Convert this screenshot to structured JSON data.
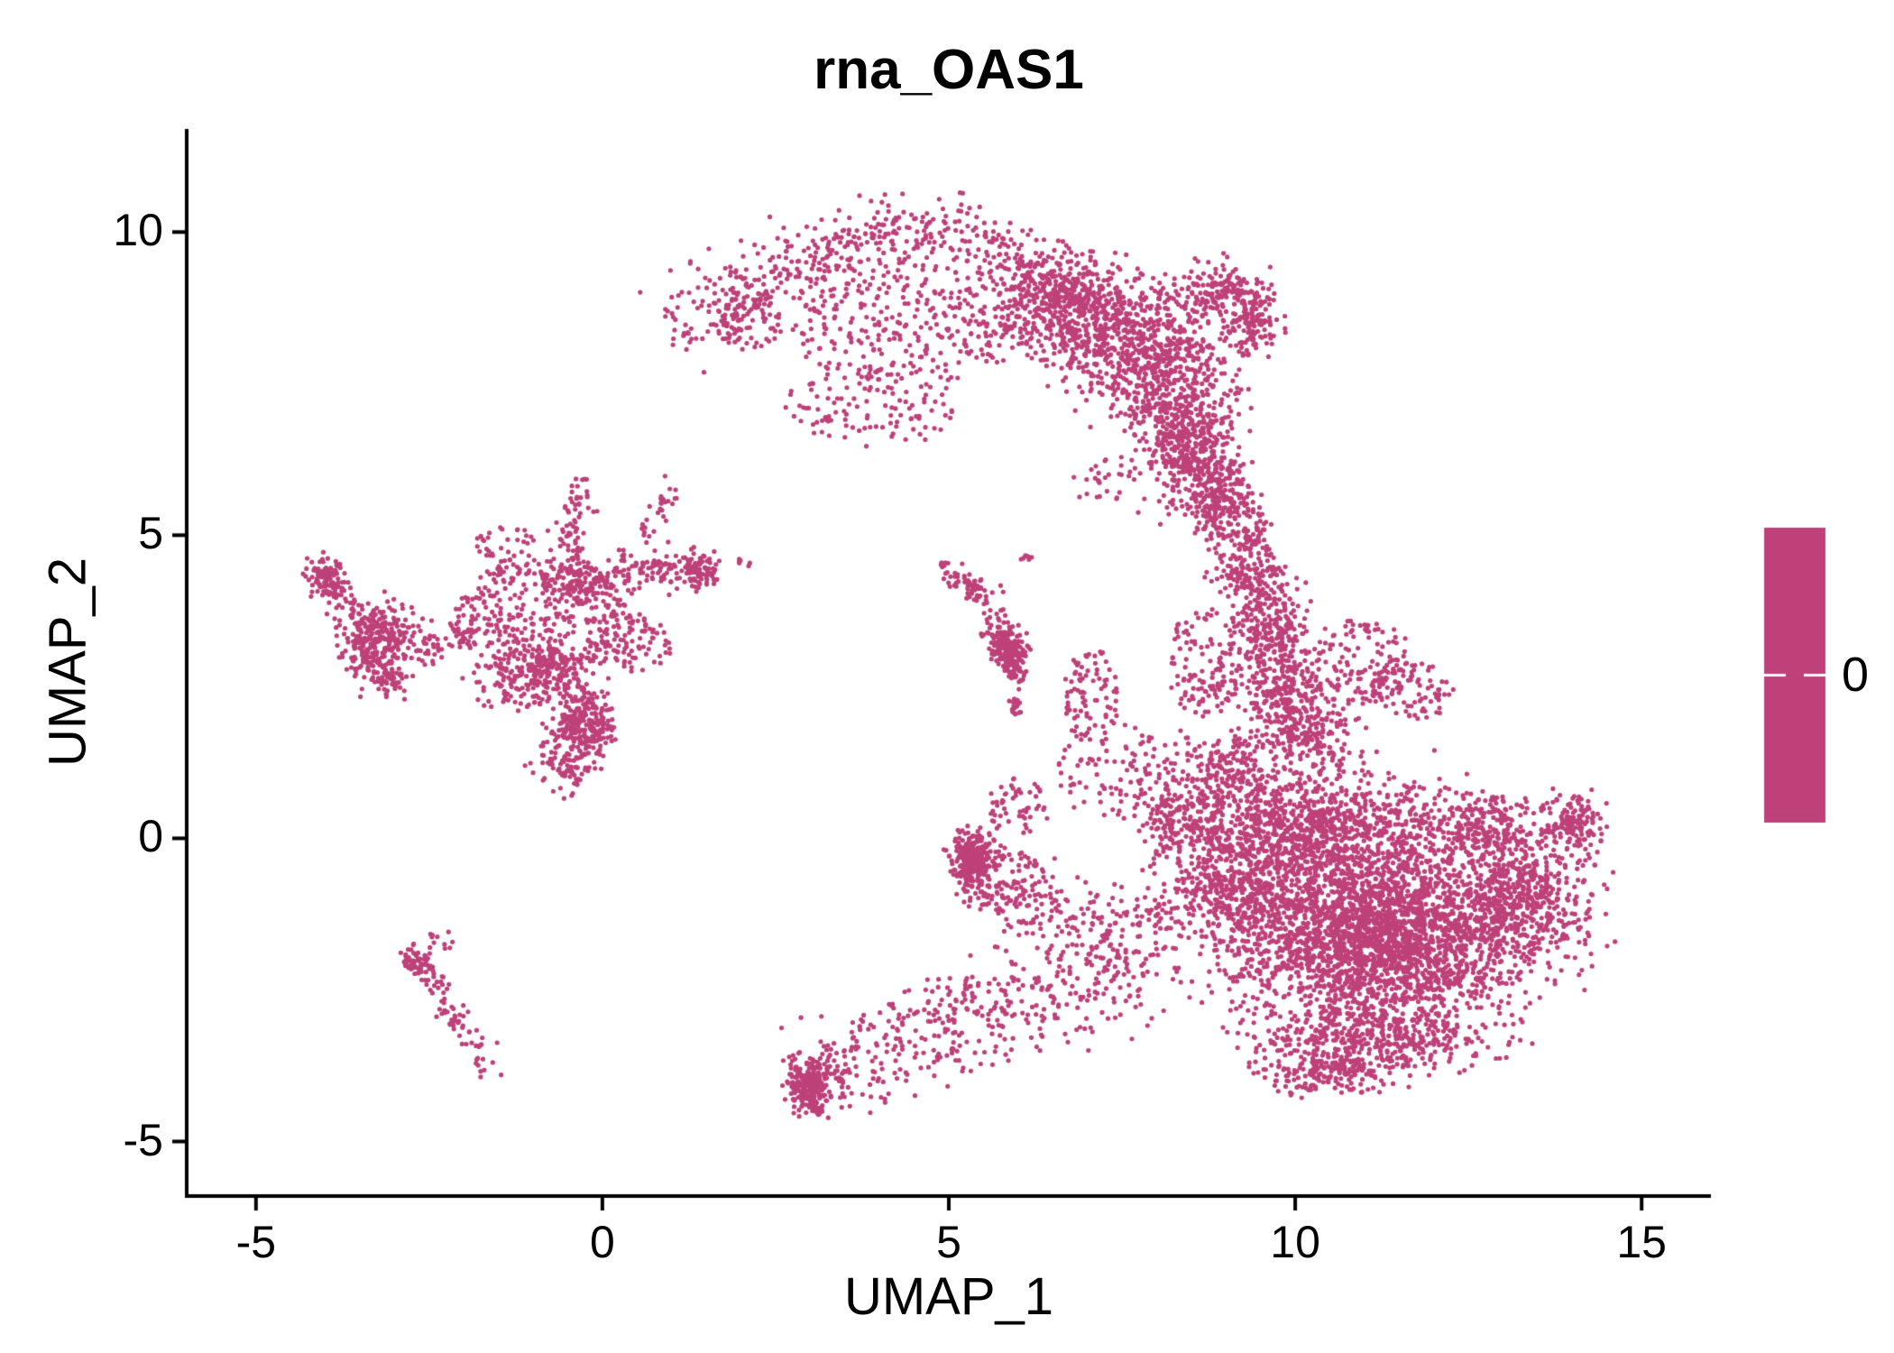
{
  "title": "rna_OAS1",
  "axes": {
    "x": {
      "label": "UMAP_1",
      "ticks": [
        -5,
        0,
        5,
        10,
        15
      ],
      "tick_labels": [
        "-5",
        "0",
        "5",
        "10",
        "15"
      ]
    },
    "y": {
      "label": "UMAP_2",
      "ticks": [
        -5,
        0,
        5,
        10
      ],
      "tick_labels": [
        "-5",
        "0",
        "5",
        "10"
      ]
    }
  },
  "legend": {
    "label": "0",
    "color": "#BE4179"
  },
  "style": {
    "background": "#FFFFFF",
    "axis_color": "#000000",
    "text_color": "#000000"
  },
  "chart_data": {
    "type": "scatter",
    "title": "rna_OAS1",
    "xlabel": "UMAP_1",
    "ylabel": "UMAP_2",
    "xlim": [
      -6.0,
      16.0
    ],
    "ylim": [
      -5.9,
      11.7
    ],
    "grid": false,
    "legend_position": "right",
    "legend": {
      "value": "0"
    },
    "point_color": "#BE4179",
    "point_radius_px": 2.6,
    "seed": 20,
    "description": "UMAP embedding of single cells, all points colored by rna_OAS1 expression value 0 (uniform magenta). Clusters approximated as blobs (gaussian/uniform ellipses) and paths (jittered polylines) in UMAP coordinates.",
    "clusters": [
      {
        "shape": "path",
        "pts": [
          [
            1.3,
            8.7
          ],
          [
            2.2,
            9.15
          ],
          [
            3.2,
            9.6
          ],
          [
            4.3,
            9.95
          ],
          [
            5.2,
            9.85
          ],
          [
            6.0,
            9.55
          ],
          [
            6.8,
            9.25
          ]
        ],
        "w": 0.3,
        "n": 520
      },
      {
        "shape": "blob",
        "x": 6.5,
        "y": 8.8,
        "rx": 1.0,
        "ry": 0.75,
        "n": 420,
        "dist": "gauss"
      },
      {
        "shape": "blob",
        "x": 7.5,
        "y": 8.3,
        "rx": 1.1,
        "ry": 1.0,
        "n": 560,
        "dist": "gauss"
      },
      {
        "shape": "blob",
        "x": 8.2,
        "y": 7.3,
        "rx": 0.9,
        "ry": 1.05,
        "n": 460,
        "dist": "gauss"
      },
      {
        "shape": "blob",
        "x": 8.6,
        "y": 6.3,
        "rx": 0.65,
        "ry": 0.85,
        "n": 300,
        "dist": "gauss"
      },
      {
        "shape": "blob",
        "x": 8.85,
        "y": 5.6,
        "rx": 0.5,
        "ry": 0.55,
        "n": 160,
        "dist": "gauss"
      },
      {
        "shape": "blob",
        "x": 9.35,
        "y": 8.5,
        "rx": 0.4,
        "ry": 0.5,
        "n": 140,
        "dist": "gauss"
      },
      {
        "shape": "blob",
        "x": 8.9,
        "y": 9.0,
        "rx": 0.6,
        "ry": 0.45,
        "n": 150,
        "dist": "gauss"
      },
      {
        "shape": "blob",
        "x": 4.4,
        "y": 8.4,
        "rx": 1.7,
        "ry": 0.9,
        "n": 260,
        "dist": "uniform"
      },
      {
        "shape": "blob",
        "x": 3.9,
        "y": 7.1,
        "rx": 1.3,
        "ry": 0.65,
        "n": 110,
        "dist": "uniform"
      },
      {
        "shape": "blob",
        "x": 2.1,
        "y": 8.5,
        "rx": 0.5,
        "ry": 0.45,
        "n": 70,
        "dist": "uniform"
      },
      {
        "shape": "blob",
        "x": 1.15,
        "y": 8.3,
        "rx": 0.2,
        "ry": 0.3,
        "n": 15,
        "dist": "gauss"
      },
      {
        "shape": "blob",
        "x": 7.2,
        "y": 5.9,
        "rx": 0.5,
        "ry": 0.35,
        "n": 25,
        "dist": "uniform"
      },
      {
        "shape": "blob",
        "x": 9.15,
        "y": 5.2,
        "rx": 0.45,
        "ry": 0.45,
        "n": 80,
        "dist": "uniform"
      },
      {
        "shape": "blob",
        "x": 9.35,
        "y": 4.4,
        "rx": 0.5,
        "ry": 0.6,
        "n": 170,
        "dist": "gauss"
      },
      {
        "shape": "blob",
        "x": 9.6,
        "y": 3.5,
        "rx": 0.55,
        "ry": 0.7,
        "n": 210,
        "dist": "gauss"
      },
      {
        "shape": "blob",
        "x": 9.85,
        "y": 2.5,
        "rx": 0.65,
        "ry": 0.7,
        "n": 230,
        "dist": "gauss"
      },
      {
        "shape": "blob",
        "x": 10.1,
        "y": 1.7,
        "rx": 0.7,
        "ry": 0.55,
        "n": 200,
        "dist": "gauss"
      },
      {
        "shape": "blob",
        "x": 10.9,
        "y": 2.9,
        "rx": 0.85,
        "ry": 0.7,
        "n": 140,
        "dist": "uniform"
      },
      {
        "shape": "blob",
        "x": 11.7,
        "y": 2.45,
        "rx": 0.6,
        "ry": 0.5,
        "n": 80,
        "dist": "uniform"
      },
      {
        "shape": "blob",
        "x": 8.7,
        "y": 2.9,
        "rx": 0.55,
        "ry": 0.9,
        "n": 130,
        "dist": "uniform"
      },
      {
        "shape": "blob",
        "x": 7.05,
        "y": 2.3,
        "rx": 0.4,
        "ry": 0.85,
        "n": 90,
        "dist": "uniform"
      },
      {
        "shape": "blob",
        "x": 11.2,
        "y": -1.6,
        "rx": 1.9,
        "ry": 1.5,
        "n": 2700,
        "dist": "gauss"
      },
      {
        "shape": "blob",
        "x": 10.3,
        "y": 0.25,
        "rx": 1.7,
        "ry": 0.9,
        "n": 850,
        "dist": "gauss"
      },
      {
        "shape": "blob",
        "x": 9.3,
        "y": -0.7,
        "rx": 0.85,
        "ry": 1.2,
        "n": 500,
        "dist": "gauss"
      },
      {
        "shape": "blob",
        "x": 13.2,
        "y": -0.95,
        "rx": 1.05,
        "ry": 1.2,
        "n": 650,
        "dist": "gauss"
      },
      {
        "shape": "blob",
        "x": 14.05,
        "y": 0.2,
        "rx": 0.4,
        "ry": 0.55,
        "n": 130,
        "dist": "gauss"
      },
      {
        "shape": "blob",
        "x": 12.6,
        "y": 0.3,
        "rx": 0.8,
        "ry": 0.5,
        "n": 180,
        "dist": "gauss"
      },
      {
        "shape": "blob",
        "x": 11.0,
        "y": -3.35,
        "rx": 1.7,
        "ry": 0.6,
        "n": 430,
        "dist": "gauss"
      },
      {
        "shape": "blob",
        "x": 10.5,
        "y": -3.9,
        "rx": 0.9,
        "ry": 0.35,
        "n": 140,
        "dist": "gauss"
      },
      {
        "shape": "blob",
        "x": 9.0,
        "y": 1.15,
        "rx": 0.55,
        "ry": 0.6,
        "n": 160,
        "dist": "gauss"
      },
      {
        "shape": "blob",
        "x": 8.35,
        "y": 0.3,
        "rx": 0.6,
        "ry": 0.85,
        "n": 200,
        "dist": "gauss"
      },
      {
        "shape": "path",
        "pts": [
          [
            8.8,
            -0.9
          ],
          [
            7.9,
            -1.25
          ],
          [
            7.0,
            -1.55
          ]
        ],
        "w": 0.35,
        "n": 140
      },
      {
        "shape": "blob",
        "x": 7.4,
        "y": 1.1,
        "rx": 0.9,
        "ry": 0.8,
        "n": 100,
        "dist": "uniform"
      },
      {
        "shape": "blob",
        "x": 5.35,
        "y": -0.35,
        "rx": 0.33,
        "ry": 0.45,
        "n": 260,
        "dist": "gauss"
      },
      {
        "shape": "blob",
        "x": 5.7,
        "y": -0.7,
        "rx": 0.7,
        "ry": 0.55,
        "n": 110,
        "dist": "uniform"
      },
      {
        "shape": "path",
        "pts": [
          [
            5.9,
            -0.85
          ],
          [
            6.6,
            -1.3
          ],
          [
            7.1,
            -1.55
          ]
        ],
        "w": 0.3,
        "n": 90
      },
      {
        "shape": "blob",
        "x": 6.0,
        "y": 0.5,
        "rx": 0.45,
        "ry": 0.5,
        "n": 55,
        "dist": "uniform"
      },
      {
        "shape": "blob",
        "x": 3.0,
        "y": -4.05,
        "rx": 0.35,
        "ry": 0.42,
        "n": 230,
        "dist": "gauss"
      },
      {
        "shape": "path",
        "pts": [
          [
            3.25,
            -3.85
          ],
          [
            4.2,
            -3.4
          ],
          [
            5.2,
            -3.0
          ],
          [
            6.2,
            -2.6
          ],
          [
            7.2,
            -2.3
          ],
          [
            8.1,
            -2.15
          ]
        ],
        "w": 0.42,
        "n": 460
      },
      {
        "shape": "blob",
        "x": 3.05,
        "y": -4.45,
        "rx": 0.15,
        "ry": 0.15,
        "n": 25,
        "dist": "gauss"
      },
      {
        "shape": "blob",
        "x": -2.7,
        "y": -2.0,
        "rx": 0.18,
        "ry": 0.22,
        "n": 45,
        "dist": "gauss"
      },
      {
        "shape": "path",
        "pts": [
          [
            -2.75,
            -1.85
          ],
          [
            -2.5,
            -2.3
          ],
          [
            -2.25,
            -2.75
          ],
          [
            -2.0,
            -3.2
          ],
          [
            -1.78,
            -3.6
          ],
          [
            -1.66,
            -3.88
          ]
        ],
        "w": 0.1,
        "n": 85
      },
      {
        "shape": "blob",
        "x": -2.35,
        "y": -1.7,
        "rx": 0.3,
        "ry": 0.18,
        "n": 12,
        "dist": "uniform"
      },
      {
        "shape": "blob",
        "x": -0.9,
        "y": 3.6,
        "rx": 1.3,
        "ry": 1.0,
        "n": 380,
        "dist": "uniform"
      },
      {
        "shape": "blob",
        "x": -0.35,
        "y": 4.25,
        "rx": 0.5,
        "ry": 0.35,
        "n": 110,
        "dist": "gauss"
      },
      {
        "shape": "blob",
        "x": -0.8,
        "y": 2.95,
        "rx": 0.6,
        "ry": 0.4,
        "n": 110,
        "dist": "gauss"
      },
      {
        "shape": "path",
        "pts": [
          [
            -0.55,
            0.95
          ],
          [
            -0.45,
            1.5
          ],
          [
            -0.32,
            2.1
          ],
          [
            -0.22,
            2.55
          ]
        ],
        "w": 0.2,
        "n": 280
      },
      {
        "shape": "blob",
        "x": -0.15,
        "y": 1.8,
        "rx": 0.3,
        "ry": 0.5,
        "n": 90,
        "dist": "gauss"
      },
      {
        "shape": "path",
        "pts": [
          [
            -0.5,
            4.6
          ],
          [
            -0.42,
            5.2
          ],
          [
            -0.3,
            5.85
          ]
        ],
        "w": 0.13,
        "n": 65
      },
      {
        "shape": "path",
        "pts": [
          [
            0.15,
            4.4
          ],
          [
            0.8,
            4.5
          ],
          [
            1.35,
            4.42
          ]
        ],
        "w": 0.16,
        "n": 110
      },
      {
        "shape": "blob",
        "x": 1.4,
        "y": 4.4,
        "rx": 0.25,
        "ry": 0.28,
        "n": 85,
        "dist": "gauss"
      },
      {
        "shape": "path",
        "pts": [
          [
            0.55,
            4.95
          ],
          [
            0.8,
            5.4
          ],
          [
            1.0,
            5.8
          ]
        ],
        "w": 0.1,
        "n": 28
      },
      {
        "shape": "blob",
        "x": -3.3,
        "y": 3.3,
        "rx": 0.52,
        "ry": 0.58,
        "n": 290,
        "dist": "gauss"
      },
      {
        "shape": "path",
        "pts": [
          [
            -3.6,
            3.8
          ],
          [
            -3.92,
            4.25
          ],
          [
            -4.05,
            4.55
          ]
        ],
        "w": 0.13,
        "n": 55
      },
      {
        "shape": "blob",
        "x": -4.0,
        "y": 4.3,
        "rx": 0.22,
        "ry": 0.26,
        "n": 70,
        "dist": "gauss"
      },
      {
        "shape": "blob",
        "x": -3.1,
        "y": 2.65,
        "rx": 0.35,
        "ry": 0.3,
        "n": 60,
        "dist": "gauss"
      },
      {
        "shape": "path",
        "pts": [
          [
            -2.85,
            3.2
          ],
          [
            -2.3,
            3.3
          ],
          [
            -1.85,
            3.5
          ]
        ],
        "w": 0.22,
        "n": 60
      },
      {
        "shape": "blob",
        "x": -1.2,
        "y": 2.55,
        "rx": 0.85,
        "ry": 0.45,
        "n": 110,
        "dist": "uniform"
      },
      {
        "shape": "blob",
        "x": 0.45,
        "y": 3.2,
        "rx": 0.55,
        "ry": 0.5,
        "n": 80,
        "dist": "uniform"
      },
      {
        "shape": "blob",
        "x": -1.4,
        "y": 4.85,
        "rx": 0.45,
        "ry": 0.3,
        "n": 35,
        "dist": "uniform"
      },
      {
        "shape": "path",
        "pts": [
          [
            5.0,
            4.35
          ],
          [
            5.3,
            4.15
          ],
          [
            5.55,
            3.95
          ]
        ],
        "w": 0.11,
        "n": 60
      },
      {
        "shape": "path",
        "pts": [
          [
            5.7,
            3.5
          ],
          [
            5.85,
            3.1
          ],
          [
            5.95,
            2.7
          ]
        ],
        "w": 0.13,
        "n": 150
      },
      {
        "shape": "blob",
        "x": 5.9,
        "y": 3.05,
        "rx": 0.22,
        "ry": 0.3,
        "n": 90,
        "dist": "gauss"
      },
      {
        "shape": "blob",
        "x": 5.97,
        "y": 2.2,
        "rx": 0.1,
        "ry": 0.15,
        "n": 18,
        "dist": "gauss"
      },
      {
        "shape": "blob",
        "x": 6.12,
        "y": 4.62,
        "rx": 0.08,
        "ry": 0.08,
        "n": 7,
        "dist": "gauss"
      },
      {
        "shape": "blob",
        "x": 4.93,
        "y": 4.5,
        "rx": 0.07,
        "ry": 0.07,
        "n": 6,
        "dist": "gauss"
      },
      {
        "shape": "blob",
        "x": 2.05,
        "y": 4.55,
        "rx": 0.12,
        "ry": 0.1,
        "n": 6,
        "dist": "uniform"
      }
    ]
  }
}
